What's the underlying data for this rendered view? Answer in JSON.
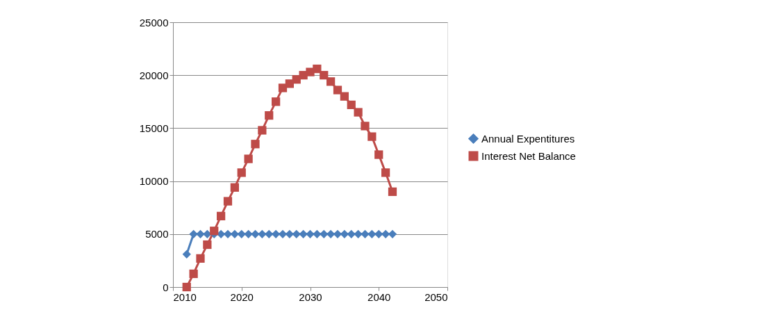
{
  "chart_data": {
    "type": "line",
    "x": [
      2012,
      2013,
      2014,
      2015,
      2016,
      2017,
      2018,
      2019,
      2020,
      2021,
      2022,
      2023,
      2024,
      2025,
      2026,
      2027,
      2028,
      2029,
      2030,
      2031,
      2032,
      2033,
      2034,
      2035,
      2036,
      2037,
      2038,
      2039,
      2040,
      2041,
      2042
    ],
    "series": [
      {
        "name": "Annual Expentitures",
        "color": "#4a7ebb",
        "marker": "diamond",
        "values": [
          3100,
          5000,
          5000,
          5000,
          5000,
          5000,
          5000,
          5000,
          5000,
          5000,
          5000,
          5000,
          5000,
          5000,
          5000,
          5000,
          5000,
          5000,
          5000,
          5000,
          5000,
          5000,
          5000,
          5000,
          5000,
          5000,
          5000,
          5000,
          5000,
          5000,
          5000
        ]
      },
      {
        "name": "Interest Net Balance",
        "color": "#be4b48",
        "marker": "square",
        "values": [
          0,
          1250,
          2700,
          4000,
          5300,
          6700,
          8100,
          9400,
          10800,
          12100,
          13500,
          14800,
          16200,
          17500,
          18800,
          19200,
          19600,
          20000,
          20300,
          20600,
          20000,
          19400,
          18600,
          18000,
          17200,
          16500,
          15200,
          14200,
          12500,
          10800,
          9000
        ]
      }
    ],
    "xlim": [
      2010,
      2050
    ],
    "xticks": [
      2010,
      2020,
      2030,
      2040,
      2050
    ],
    "ylim": [
      0,
      25000
    ],
    "yticks": [
      0,
      5000,
      10000,
      15000,
      20000,
      25000
    ],
    "grid": "y",
    "legend": "right",
    "line_style": "solid"
  }
}
